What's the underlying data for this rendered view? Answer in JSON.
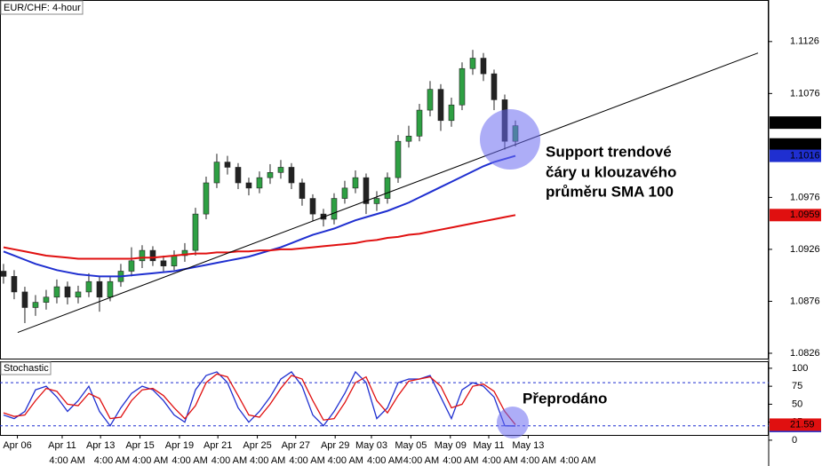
{
  "chart_data": {
    "type": "candlestick",
    "title": "EUR/CHF: 4-hour",
    "up_color": "#2ea043",
    "down_color": "#222222",
    "open": [
      1.0905,
      1.09,
      1.0885,
      1.087,
      1.0875,
      1.088,
      1.089,
      1.088,
      1.0885,
      1.0895,
      1.088,
      1.0895,
      1.0905,
      1.0915,
      1.0925,
      1.0915,
      1.091,
      1.092,
      1.0925,
      1.096,
      1.099,
      1.101,
      1.1005,
      1.099,
      1.0985,
      1.0995,
      1.1,
      1.1005,
      1.099,
      1.0975,
      1.096,
      1.0955,
      1.0975,
      1.0985,
      1.0995,
      1.097,
      1.0975,
      1.0995,
      1.103,
      1.1035,
      1.106,
      1.108,
      1.105,
      1.1065,
      1.11,
      1.111,
      1.1095,
      1.107,
      1.103
    ],
    "high": [
      1.0912,
      1.0906,
      1.089,
      1.0882,
      1.0887,
      1.0897,
      1.0895,
      1.0891,
      1.0903,
      1.09,
      1.09,
      1.0912,
      1.0928,
      1.093,
      1.0929,
      1.092,
      1.0925,
      1.0932,
      1.0966,
      1.0996,
      1.1018,
      1.1016,
      1.1009,
      1.0995,
      1.1001,
      1.1008,
      1.1012,
      1.1009,
      1.0994,
      1.0979,
      1.0965,
      1.098,
      1.0992,
      1.1002,
      1.0999,
      1.0982,
      1.1,
      1.1036,
      1.1045,
      1.1066,
      1.1088,
      1.1085,
      1.1072,
      1.1106,
      1.1118,
      1.1115,
      1.1099,
      1.1075,
      1.105
    ],
    "low": [
      1.0893,
      1.0878,
      1.0855,
      1.0862,
      1.0868,
      1.0874,
      1.0873,
      1.0874,
      1.088,
      1.0866,
      1.0876,
      1.089,
      1.09,
      1.0908,
      1.091,
      1.0905,
      1.0906,
      1.0914,
      1.092,
      1.0955,
      1.0985,
      1.0998,
      1.0984,
      1.0978,
      1.098,
      1.0989,
      1.0994,
      1.0984,
      1.0968,
      1.0953,
      1.0948,
      1.095,
      1.097,
      1.098,
      1.096,
      1.0963,
      1.097,
      1.099,
      1.1024,
      1.103,
      1.1054,
      1.104,
      1.1044,
      1.106,
      1.1094,
      1.1088,
      1.106,
      1.1022,
      1.1025
    ],
    "close": [
      1.09,
      1.0885,
      1.087,
      1.0875,
      1.088,
      1.089,
      1.088,
      1.0885,
      1.0895,
      1.088,
      1.0895,
      1.0905,
      1.0915,
      1.0925,
      1.0915,
      1.091,
      1.092,
      1.0925,
      1.096,
      1.099,
      1.101,
      1.1005,
      1.099,
      1.0985,
      1.0995,
      1.1,
      1.1005,
      1.099,
      1.0975,
      1.096,
      1.0955,
      1.0975,
      1.0985,
      1.0995,
      1.097,
      1.0975,
      1.0995,
      1.103,
      1.1035,
      1.106,
      1.108,
      1.105,
      1.1065,
      1.11,
      1.111,
      1.1095,
      1.107,
      1.103,
      1.1045
    ],
    "series": [
      {
        "color": "#1f2fd0",
        "values": [
          1.0924,
          1.092,
          1.0916,
          1.0912,
          1.0909,
          1.0906,
          1.0904,
          1.0902,
          1.0901,
          1.09,
          1.09,
          1.09,
          1.0901,
          1.0902,
          1.0903,
          1.0904,
          1.0905,
          1.0907,
          1.0909,
          1.0911,
          1.0913,
          1.0915,
          1.0917,
          1.0919,
          1.0922,
          1.0925,
          1.0928,
          1.0932,
          1.0936,
          1.094,
          1.0943,
          1.0946,
          1.095,
          1.0954,
          1.0957,
          1.096,
          1.0963,
          1.0967,
          1.0971,
          1.0976,
          1.0981,
          1.0986,
          1.0991,
          1.0996,
          1.1001,
          1.1006,
          1.101,
          1.1013,
          1.1016
        ]
      },
      {
        "color": "#e01010",
        "values": [
          1.0928,
          1.0926,
          1.0924,
          1.0922,
          1.092,
          1.0919,
          1.0918,
          1.0917,
          1.0917,
          1.0917,
          1.0917,
          1.0917,
          1.0917,
          1.0918,
          1.0918,
          1.0919,
          1.092,
          1.0921,
          1.0922,
          1.0922,
          1.0923,
          1.0923,
          1.0924,
          1.0924,
          1.0925,
          1.0925,
          1.0926,
          1.0926,
          1.0927,
          1.0928,
          1.0929,
          1.093,
          1.0931,
          1.0932,
          1.0934,
          1.0935,
          1.0937,
          1.0938,
          1.094,
          1.0941,
          1.0943,
          1.0945,
          1.0947,
          1.0949,
          1.0951,
          1.0953,
          1.0955,
          1.0957,
          1.0959
        ]
      }
    ],
    "trendline": {
      "x": [
        1.33,
        70.75
      ],
      "y": [
        1.0846,
        1.1115
      ],
      "color": "#000000"
    },
    "xlim": [
      -0.33,
      71.75
    ],
    "ylim": [
      1.082,
      1.1166
    ],
    "yticks": [
      1.0826,
      1.0876,
      1.0926,
      1.0976,
      1.1076,
      1.1126
    ],
    "price_labels": [
      {
        "value": 1.1048,
        "color": "#000000"
      },
      {
        "value": 1.1027,
        "color": "#000000"
      },
      {
        "value": 1.1016,
        "color": "#1f2fd0"
      },
      {
        "value": 1.0959,
        "color": "#e01010"
      }
    ],
    "xticks": [
      {
        "value": 1.3,
        "label": "Apr 06"
      },
      {
        "value": 5.5,
        "label": "Apr 11"
      },
      {
        "value": 9.1,
        "label": "Apr 13"
      },
      {
        "value": 12.8,
        "label": "Apr 15"
      },
      {
        "value": 16.5,
        "label": "Apr 19"
      },
      {
        "value": 20.1,
        "label": "Apr 21"
      },
      {
        "value": 23.8,
        "label": "Apr 25"
      },
      {
        "value": 27.4,
        "label": "Apr 27"
      },
      {
        "value": 31.1,
        "label": "Apr 29"
      },
      {
        "value": 34.5,
        "label": "May 03"
      },
      {
        "value": 38.2,
        "label": "May 05"
      },
      {
        "value": 41.9,
        "label": "May 09"
      },
      {
        "value": 45.5,
        "label": "May 11"
      },
      {
        "value": 49.2,
        "label": "May 13"
      }
    ],
    "time_label": "4:00 AM",
    "annotations": [
      "Support trendové",
      "čáry u klouzavého",
      "průměru SMA 100",
      "Přeprodáno"
    ],
    "stochastic": {
      "title": "Stochastic",
      "ylim": [
        7.3,
        108.5
      ],
      "yticks": [
        0,
        25,
        50,
        75,
        100
      ],
      "levels": [
        20,
        80
      ],
      "series": [
        {
          "color": "#1f2fd0",
          "values": [
            35,
            30,
            40,
            70,
            75,
            60,
            40,
            55,
            75,
            40,
            20,
            45,
            65,
            75,
            70,
            55,
            35,
            25,
            70,
            90,
            95,
            80,
            45,
            25,
            40,
            60,
            85,
            95,
            75,
            35,
            20,
            40,
            65,
            95,
            80,
            30,
            45,
            80,
            85,
            85,
            90,
            60,
            30,
            70,
            80,
            75,
            60,
            20,
            19.74
          ]
        },
        {
          "color": "#e01010",
          "values": [
            38,
            33,
            35,
            55,
            72,
            68,
            50,
            48,
            65,
            58,
            30,
            32,
            55,
            70,
            72,
            62,
            45,
            30,
            48,
            80,
            92,
            88,
            62,
            35,
            32,
            50,
            72,
            90,
            85,
            55,
            28,
            30,
            52,
            80,
            88,
            55,
            38,
            62,
            82,
            85,
            88,
            75,
            45,
            50,
            75,
            78,
            68,
            40,
            21.59
          ]
        }
      ]
    }
  }
}
